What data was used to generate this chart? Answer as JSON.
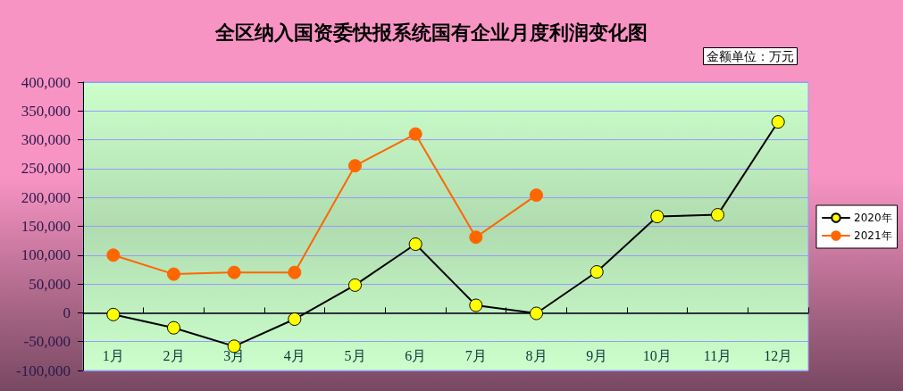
{
  "chart_data": {
    "type": "line",
    "title": "全区纳入国资委快报系统国有企业月度利润变化图",
    "annotations": [
      "金额单位：万元"
    ],
    "categories": [
      "1月",
      "2月",
      "3月",
      "4月",
      "5月",
      "6月",
      "7月",
      "8月",
      "9月",
      "10月",
      "11月",
      "12月"
    ],
    "series": [
      {
        "name": "2020年",
        "color": "#000000",
        "values": [
          -3000,
          -26000,
          -58000,
          -11000,
          48000,
          119000,
          13000,
          -1000,
          71000,
          167000,
          170000,
          331000
        ]
      },
      {
        "name": "2021年",
        "color": "#ff6600",
        "values": [
          100000,
          67000,
          70000,
          70000,
          255000,
          310000,
          131000,
          204000,
          null,
          null,
          null,
          null
        ]
      }
    ],
    "ylim": [
      -100000,
      400000
    ],
    "yticks": [
      {
        "value": -100000,
        "label": "-100,000"
      },
      {
        "value": -50000,
        "label": "-50,000"
      },
      0,
      {
        "value": 50000,
        "label": "50,000"
      },
      {
        "value": 100000,
        "label": "100,000"
      },
      {
        "value": 150000,
        "label": "150,000"
      },
      {
        "value": 200000,
        "label": "200,000"
      },
      {
        "value": 250000,
        "label": "250,000"
      },
      {
        "value": 300000,
        "label": "300,000"
      },
      {
        "value": 350000,
        "label": "350,000"
      },
      {
        "value": 400000,
        "label": "400,000"
      }
    ],
    "grid": "y",
    "legend": "right",
    "marker": "circle",
    "line_style": "solid"
  }
}
